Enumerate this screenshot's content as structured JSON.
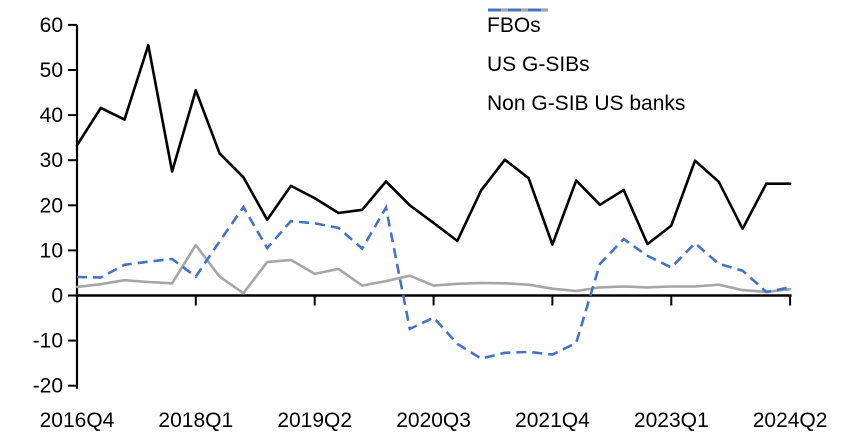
{
  "chart_data": {
    "type": "line",
    "title": "",
    "categories": [
      "2016Q4",
      "2017Q1",
      "2017Q2",
      "2017Q3",
      "2017Q4",
      "2018Q1",
      "2018Q2",
      "2018Q3",
      "2018Q4",
      "2019Q1",
      "2019Q2",
      "2019Q3",
      "2019Q4",
      "2020Q1",
      "2020Q2",
      "2020Q3",
      "2020Q4",
      "2021Q1",
      "2021Q2",
      "2021Q3",
      "2021Q4",
      "2022Q1",
      "2022Q2",
      "2022Q3",
      "2022Q4",
      "2023Q1",
      "2023Q2",
      "2023Q3",
      "2023Q4",
      "2024Q1",
      "2024Q2"
    ],
    "series": [
      {
        "name": "FBOs",
        "color": "#000000",
        "style": "solid",
        "values": [
          33.3,
          41.6,
          39.0,
          55.5,
          27.5,
          45.5,
          31.5,
          26.2,
          16.8,
          24.3,
          21.6,
          18.3,
          19.0,
          25.3,
          20.0,
          16.1,
          12.1,
          23.3,
          30.1,
          26.0,
          11.3,
          25.5,
          20.1,
          23.4,
          11.4,
          15.5,
          29.9,
          25.2,
          14.8,
          24.8,
          24.8
        ]
      },
      {
        "name": "US G-SIBs",
        "color": "#A6A6A6",
        "style": "solid",
        "values": [
          1.9,
          2.5,
          3.4,
          3.0,
          2.7,
          11.2,
          4.2,
          0.5,
          7.4,
          7.9,
          4.8,
          5.9,
          2.2,
          3.2,
          4.4,
          2.2,
          2.6,
          2.8,
          2.7,
          2.4,
          1.5,
          1.0,
          1.8,
          2.0,
          1.8,
          2.0,
          2.0,
          2.4,
          1.2,
          0.8,
          1.4
        ]
      },
      {
        "name": "Non G-SIB US banks",
        "color": "#4472C4",
        "style": "dashed",
        "values": [
          4.1,
          4.0,
          6.8,
          7.5,
          8.1,
          4.2,
          12.0,
          19.6,
          10.5,
          16.5,
          16.0,
          15.0,
          10.4,
          19.5,
          -7.4,
          -4.9,
          -10.7,
          -14.0,
          -12.7,
          -12.5,
          -13.1,
          -10.5,
          7.0,
          12.5,
          8.8,
          6.2,
          11.6,
          7.0,
          5.5,
          0.8,
          1.8
        ]
      }
    ],
    "y_axis": {
      "min": -20,
      "max": 60,
      "tick_step": 10,
      "tick_labels": [
        "60",
        "50",
        "40",
        "30",
        "20",
        "10",
        "0",
        "-10",
        "-20"
      ]
    },
    "x_axis": {
      "tick_every": 5,
      "tick_labels": [
        "2016Q4",
        "2018Q1",
        "2019Q2",
        "2020Q3",
        "2021Q4",
        "2023Q1",
        "2024Q2"
      ]
    },
    "legend_position": "top-right",
    "grid": false,
    "axis_color": "#000000"
  }
}
